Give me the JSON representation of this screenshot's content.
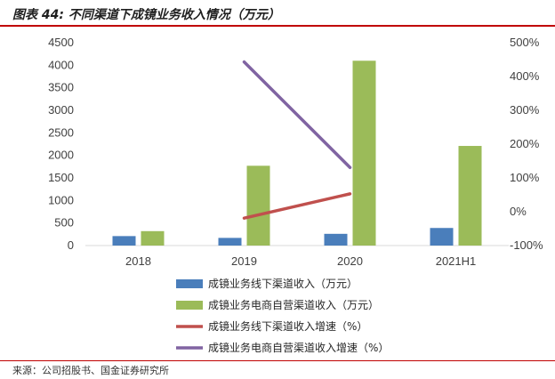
{
  "header": {
    "title": "图表 44:  不同渠道下成镜业务收入情况（万元）"
  },
  "footer": {
    "source": "来源：公司招股书、国金证券研究所"
  },
  "colors": {
    "offline_bar": "#4a7ebb",
    "online_bar": "#9bbb59",
    "offline_growth_line": "#c0504d",
    "online_growth_line": "#8064a2",
    "rule": "#c00000"
  },
  "chart_data": {
    "type": "bar",
    "categories": [
      "2018",
      "2019",
      "2020",
      "2021H1"
    ],
    "y_left": {
      "min": 0,
      "max": 4500,
      "step": 500,
      "ticks": [
        "0",
        "500",
        "1000",
        "1500",
        "2000",
        "2500",
        "3000",
        "3500",
        "4000",
        "4500"
      ]
    },
    "y_right": {
      "min": -100,
      "max": 500,
      "step": 100,
      "ticks": [
        "-100%",
        "0%",
        "100%",
        "200%",
        "300%",
        "400%",
        "500%"
      ]
    },
    "grid": false,
    "legend_position": "bottom",
    "series": [
      {
        "name": "成镜业务线下渠道收入（万元）",
        "kind": "bar",
        "axis": "left",
        "color": "#4a7ebb",
        "values": [
          210,
          170,
          260,
          390
        ]
      },
      {
        "name": "成镜业务电商自营渠道收入（万元）",
        "kind": "bar",
        "axis": "left",
        "color": "#9bbb59",
        "values": [
          320,
          1770,
          4100,
          2210
        ]
      },
      {
        "name": "成镜业务线下渠道收入增速（%）",
        "kind": "line",
        "axis": "right",
        "color": "#c0504d",
        "values": [
          null,
          -19,
          53,
          null
        ]
      },
      {
        "name": "成镜业务电商自营渠道收入增速（%）",
        "kind": "line",
        "axis": "right",
        "color": "#8064a2",
        "values": [
          null,
          443,
          131,
          null
        ]
      }
    ]
  }
}
